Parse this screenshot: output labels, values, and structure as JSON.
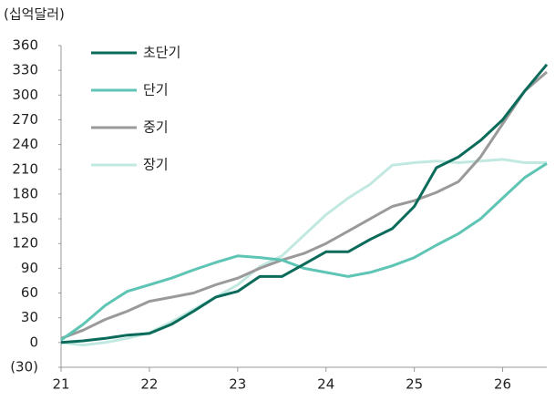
{
  "chart_data": {
    "type": "line",
    "y_axis_label": "(십억달러)",
    "x": [
      21,
      21.25,
      21.5,
      21.75,
      22,
      22.25,
      22.5,
      22.75,
      23,
      23.25,
      23.5,
      23.75,
      24,
      24.25,
      24.5,
      24.75,
      25,
      25.25,
      25.5,
      25.75,
      26,
      26.25,
      26.5
    ],
    "series": [
      {
        "name": "초단기",
        "color": "#0b6b5b",
        "values": [
          0,
          2,
          5,
          9,
          11,
          22,
          38,
          55,
          62,
          80,
          80,
          95,
          110,
          110,
          125,
          138,
          165,
          212,
          225,
          245,
          270,
          305,
          337
        ]
      },
      {
        "name": "단기",
        "color": "#5ec5b5",
        "values": [
          3,
          22,
          45,
          62,
          70,
          78,
          88,
          97,
          105,
          103,
          100,
          90,
          85,
          80,
          85,
          93,
          103,
          118,
          132,
          150,
          175,
          200,
          217
        ]
      },
      {
        "name": "중기",
        "color": "#9a9a9a",
        "values": [
          5,
          15,
          28,
          38,
          50,
          55,
          60,
          70,
          78,
          90,
          100,
          108,
          120,
          135,
          150,
          165,
          172,
          182,
          195,
          225,
          265,
          305,
          328
        ]
      },
      {
        "name": "장기",
        "color": "#c2e9e1",
        "values": [
          0,
          -3,
          0,
          5,
          12,
          25,
          40,
          55,
          70,
          92,
          105,
          130,
          155,
          175,
          192,
          215,
          218,
          220,
          218,
          220,
          222,
          218,
          218
        ]
      }
    ],
    "xlim": [
      21,
      26.5
    ],
    "xticks": [
      21,
      22,
      23,
      24,
      25,
      26
    ],
    "ylim": [
      -30,
      360
    ],
    "yticks": [
      {
        "value": -30,
        "label": "(30)"
      },
      0,
      30,
      60,
      90,
      120,
      150,
      180,
      210,
      240,
      270,
      300,
      330,
      360
    ],
    "legend": "upper left"
  }
}
